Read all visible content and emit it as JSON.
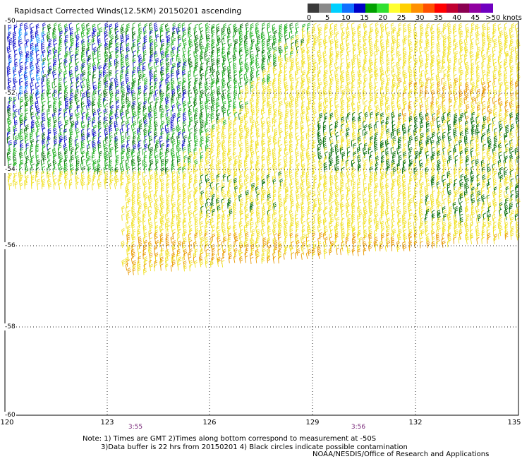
{
  "title": "Rapidsact Corrected Winds(12.5KM) 20150201 ascending",
  "legend": {
    "labels": [
      "0",
      "5",
      "10",
      "15",
      "20",
      "25",
      "30",
      "35",
      "40",
      "45",
      ">50 knots"
    ],
    "colors": [
      "#3a3a3a",
      "#8a8a8a",
      "#00d0ff",
      "#1070ff",
      "#0000c8",
      "#00a000",
      "#30e030",
      "#ffff30",
      "#ffd000",
      "#ff9000",
      "#ff5000",
      "#ff0000",
      "#c00030",
      "#8a0050",
      "#9000a0",
      "#7000c0"
    ]
  },
  "map": {
    "lon_ticks": [
      "120",
      "123",
      "126",
      "129",
      "132",
      "135"
    ],
    "lat_ticks": [
      "-50",
      "-52",
      "-54",
      "-56",
      "-58",
      "-60"
    ],
    "times": [
      "3:55",
      "3:56"
    ],
    "wind_colors": {
      "blue": "#1010c8",
      "lightblue": "#20a0ff",
      "green": "#20b020",
      "darkgreen": "#006a00",
      "yellow": "#f0e020",
      "orange": "#e89800"
    }
  },
  "notes": {
    "line1": "Note: 1) Times are GMT 2)Times along bottom correspond to measurement at -50S",
    "line2": "3)Data buffer is 22 hrs from 20150201 4) Black circles indicate possible contamination",
    "line3": "NOAA/NESDIS/Office of Research and Applications"
  }
}
